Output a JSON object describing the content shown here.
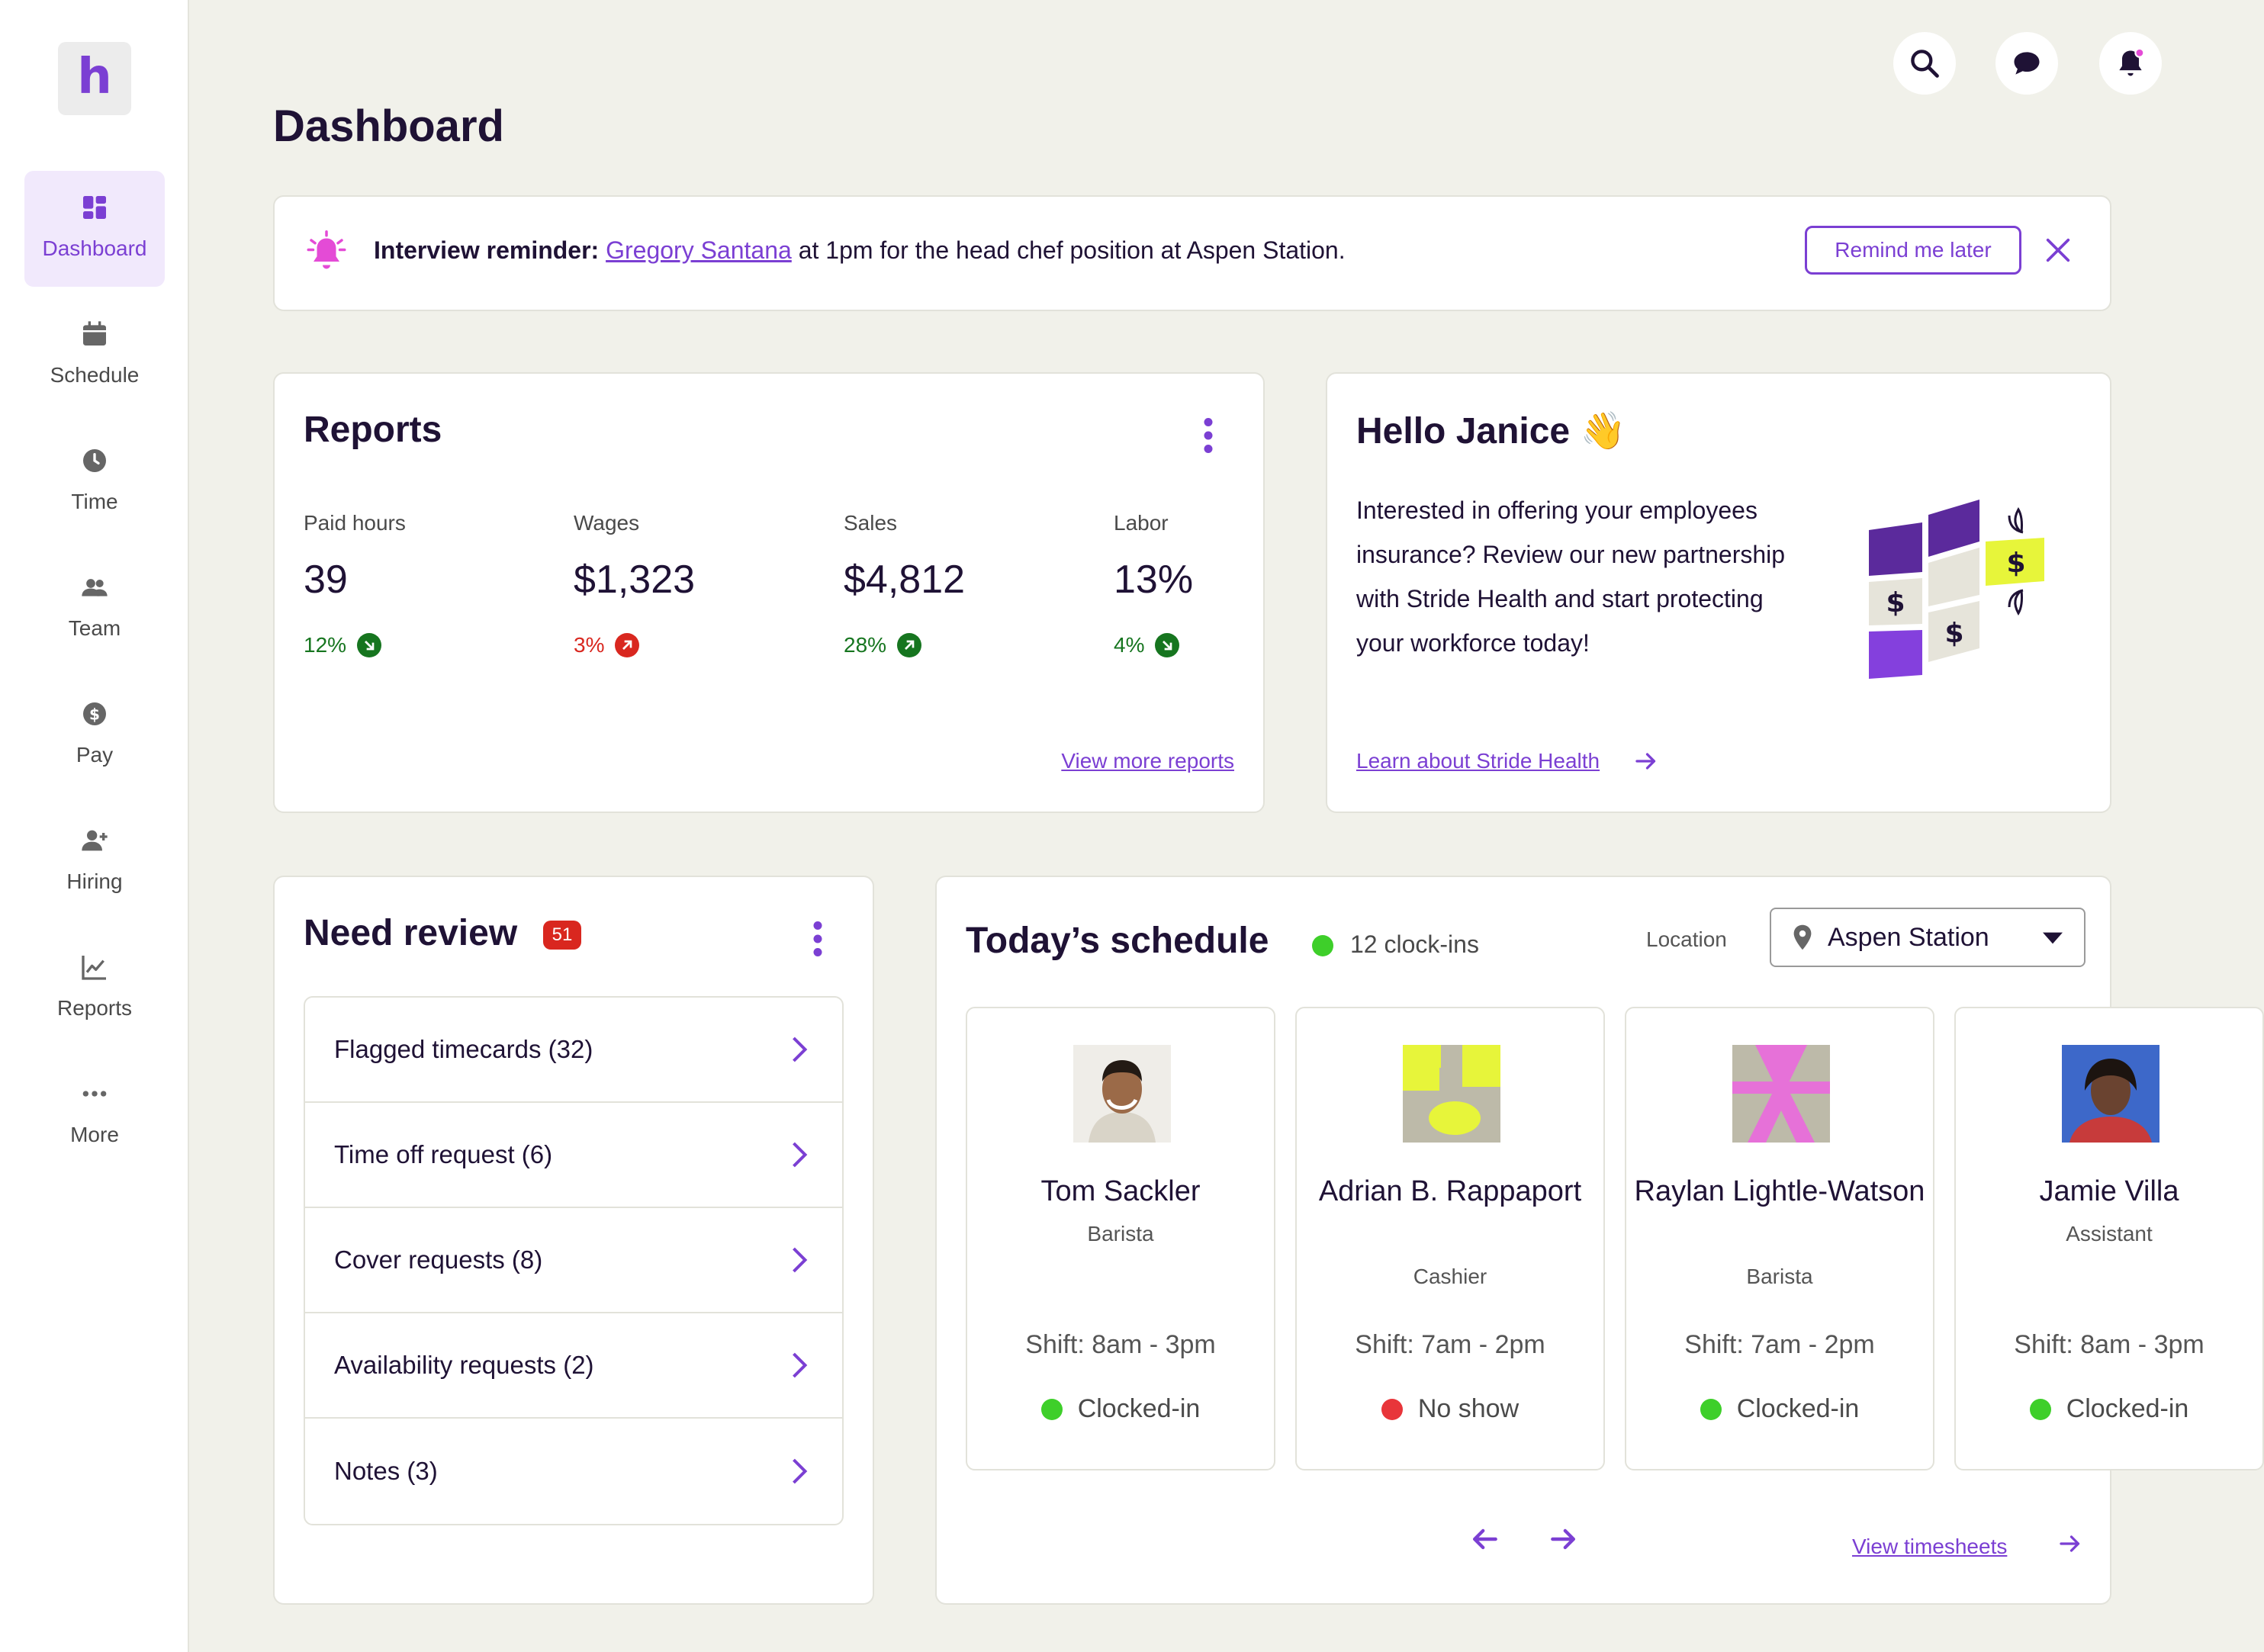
{
  "app": {
    "logo_letter": "h",
    "page_title": "Dashboard"
  },
  "sidebar": {
    "items": [
      {
        "label": "Dashboard",
        "icon": "dashboard-icon",
        "active": true
      },
      {
        "label": "Schedule",
        "icon": "calendar-icon",
        "active": false
      },
      {
        "label": "Time",
        "icon": "clock-icon",
        "active": false
      },
      {
        "label": "Team",
        "icon": "team-icon",
        "active": false
      },
      {
        "label": "Pay",
        "icon": "dollar-icon",
        "active": false
      },
      {
        "label": "Hiring",
        "icon": "add-user-icon",
        "active": false
      },
      {
        "label": "Reports",
        "icon": "chart-icon",
        "active": false
      },
      {
        "label": "More",
        "icon": "more-icon",
        "active": false
      }
    ]
  },
  "header_icons": [
    "search-icon",
    "chat-icon",
    "bell-icon"
  ],
  "banner": {
    "bold_text": "Interview reminder:",
    "link_text": "Gregory Santana",
    "rest_text": " at 1pm for the head chef position at Aspen Station.",
    "button_label": "Remind me later"
  },
  "reports": {
    "title": "Reports",
    "metrics": [
      {
        "label": "Paid hours",
        "value": "39",
        "change": "12%",
        "direction": "down",
        "color": "#16751f"
      },
      {
        "label": "Wages",
        "value": "$1,323",
        "change": "3%",
        "direction": "up",
        "color": "#d9271f"
      },
      {
        "label": "Sales",
        "value": "$4,812",
        "change": "28%",
        "direction": "up",
        "color": "#16751f"
      },
      {
        "label": "Labor",
        "value": "13%",
        "change": "4%",
        "direction": "down",
        "color": "#16751f"
      }
    ],
    "link": "View more reports"
  },
  "hello": {
    "title": "Hello Janice 👋",
    "body_lines": [
      "Interested in offering your employees",
      "insurance?  Review our new partnership",
      "with Stride Health and start protecting",
      "your workforce today!"
    ],
    "link": "Learn about Stride Health"
  },
  "review": {
    "title": "Need review",
    "badge": "51",
    "items": [
      {
        "label": "Flagged timecards (32)"
      },
      {
        "label": "Time off request (6)"
      },
      {
        "label": "Cover requests (8)"
      },
      {
        "label": "Availability requests (2)"
      },
      {
        "label": "Notes (3)"
      }
    ]
  },
  "schedule": {
    "title": "Today’s schedule",
    "clockins": "12 clock-ins",
    "location_label": "Location",
    "location_value": "Aspen Station",
    "link": "View timesheets",
    "employees": [
      {
        "name": "Tom Sackler",
        "role": "Barista",
        "shift": "Shift: 8am - 3pm",
        "status": "Clocked-in",
        "status_color": "#3ecf2a"
      },
      {
        "name": "Adrian B. Rappaport",
        "role": "Cashier",
        "shift": "Shift: 7am - 2pm",
        "status": "No show",
        "status_color": "#e8353a"
      },
      {
        "name": "Raylan Lightle-Watson",
        "role": "Barista",
        "shift": "Shift: 7am - 2pm",
        "status": "Clocked-in",
        "status_color": "#3ecf2a"
      },
      {
        "name": "Jamie Villa",
        "role": "Assistant",
        "shift": "Shift: 8am - 3pm",
        "status": "Clocked-in",
        "status_color": "#3ecf2a"
      }
    ]
  },
  "colors": {
    "accent": "#7b3fd3",
    "background": "#f1f1ea",
    "text": "#1f1235"
  }
}
